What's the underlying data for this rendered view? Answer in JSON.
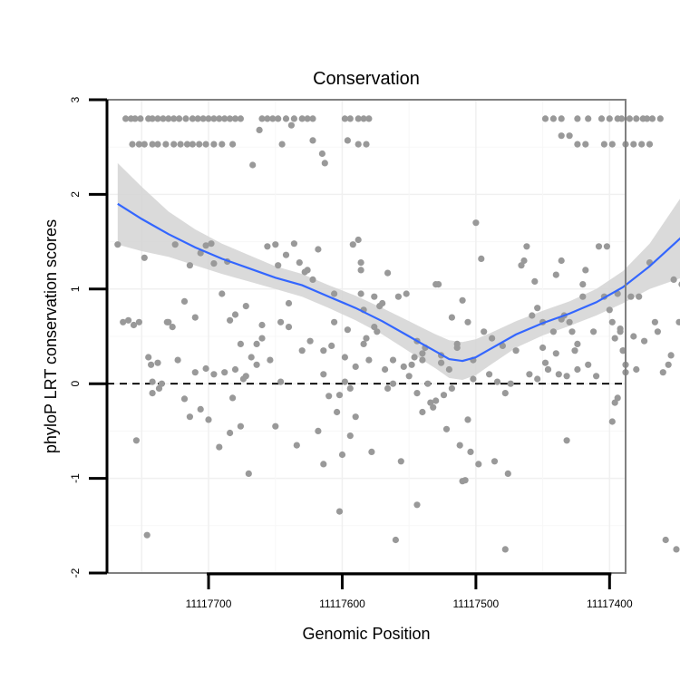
{
  "chart_data": {
    "type": "scatter",
    "title": "Conservation",
    "xlabel": "Genomic Position",
    "ylabel": "phyloP LRT conservation scores",
    "xlim": [
      11117776,
      11117388
    ],
    "ylim": [
      -2,
      3
    ],
    "x_reversed": true,
    "x_ticks": [
      11117700,
      11117600,
      11117500,
      11117400
    ],
    "x_tick_labels": [
      "11117700",
      "11117600",
      "11117500",
      "11117400"
    ],
    "y_ticks": [
      -2,
      -1,
      0,
      1,
      2,
      3
    ],
    "y_tick_labels": [
      "-2",
      "-1",
      "0",
      "1",
      "2",
      "3"
    ],
    "grid": true,
    "reference_line": {
      "y": 0,
      "style": "dashed",
      "color": "#000000"
    },
    "point_color": "#999999",
    "smooth_color": "#3366ff",
    "band_color": "#d4d4d4",
    "points": [
      [
        11117762,
        2.8
      ],
      [
        11117758,
        2.8
      ],
      [
        11117755,
        2.8
      ],
      [
        11117751,
        2.8
      ],
      [
        11117745,
        2.8
      ],
      [
        11117742,
        2.8
      ],
      [
        11117738,
        2.8
      ],
      [
        11117734,
        2.8
      ],
      [
        11117730,
        2.8
      ],
      [
        11117726,
        2.8
      ],
      [
        11117722,
        2.8
      ],
      [
        11117717,
        2.8
      ],
      [
        11117712,
        2.8
      ],
      [
        11117708,
        2.8
      ],
      [
        11117704,
        2.8
      ],
      [
        11117700,
        2.8
      ],
      [
        11117696,
        2.8
      ],
      [
        11117692,
        2.8
      ],
      [
        11117688,
        2.8
      ],
      [
        11117684,
        2.8
      ],
      [
        11117680,
        2.8
      ],
      [
        11117676,
        2.8
      ],
      [
        11117757,
        2.53
      ],
      [
        11117752,
        2.53
      ],
      [
        11117748,
        2.53
      ],
      [
        11117742,
        2.53
      ],
      [
        11117738,
        2.53
      ],
      [
        11117732,
        2.53
      ],
      [
        11117726,
        2.53
      ],
      [
        11117721,
        2.53
      ],
      [
        11117716,
        2.53
      ],
      [
        11117712,
        2.53
      ],
      [
        11117707,
        2.53
      ],
      [
        11117702,
        2.53
      ],
      [
        11117696,
        2.53
      ],
      [
        11117690,
        2.53
      ],
      [
        11117682,
        2.53
      ],
      [
        11117660,
        2.8
      ],
      [
        11117656,
        2.8
      ],
      [
        11117652,
        2.8
      ],
      [
        11117648,
        2.8
      ],
      [
        11117642,
        2.8
      ],
      [
        11117636,
        2.8
      ],
      [
        11117630,
        2.8
      ],
      [
        11117626,
        2.8
      ],
      [
        11117622,
        2.8
      ],
      [
        11117598,
        2.8
      ],
      [
        11117594,
        2.8
      ],
      [
        11117588,
        2.8
      ],
      [
        11117584,
        2.8
      ],
      [
        11117580,
        2.8
      ],
      [
        11117662,
        2.68
      ],
      [
        11117645,
        2.53
      ],
      [
        11117638,
        2.73
      ],
      [
        11117622,
        2.57
      ],
      [
        11117615,
        2.43
      ],
      [
        11117613,
        2.33
      ],
      [
        11117596,
        2.57
      ],
      [
        11117588,
        2.53
      ],
      [
        11117582,
        2.53
      ],
      [
        11117667,
        2.31
      ],
      [
        11117448,
        2.8
      ],
      [
        11117442,
        2.8
      ],
      [
        11117436,
        2.8
      ],
      [
        11117424,
        2.8
      ],
      [
        11117416,
        2.8
      ],
      [
        11117406,
        2.8
      ],
      [
        11117400,
        2.8
      ],
      [
        11117394,
        2.8
      ],
      [
        11117391,
        2.8
      ],
      [
        11117385,
        2.8
      ],
      [
        11117380,
        2.8
      ],
      [
        11117375,
        2.8
      ],
      [
        11117372,
        2.8
      ],
      [
        11117368,
        2.8
      ],
      [
        11117362,
        2.8
      ],
      [
        11117436,
        2.62
      ],
      [
        11117430,
        2.62
      ],
      [
        11117424,
        2.53
      ],
      [
        11117418,
        2.53
      ],
      [
        11117404,
        2.53
      ],
      [
        11117398,
        2.53
      ],
      [
        11117388,
        2.53
      ],
      [
        11117382,
        2.53
      ],
      [
        11117376,
        2.53
      ],
      [
        11117370,
        2.53
      ],
      [
        11117768,
        1.47
      ],
      [
        11117764,
        0.65
      ],
      [
        11117756,
        0.62
      ],
      [
        11117752,
        0.65
      ],
      [
        11117748,
        1.33
      ],
      [
        11117745,
        0.28
      ],
      [
        11117743,
        0.2
      ],
      [
        11117742,
        -0.1
      ],
      [
        11117738,
        0.22
      ],
      [
        11117735,
        0.0
      ],
      [
        11117731,
        0.65
      ],
      [
        11117727,
        0.6
      ],
      [
        11117723,
        0.25
      ],
      [
        11117718,
        0.87
      ],
      [
        11117714,
        1.25
      ],
      [
        11117710,
        0.7
      ],
      [
        11117706,
        1.38
      ],
      [
        11117702,
        1.46
      ],
      [
        11117698,
        1.48
      ],
      [
        11117696,
        1.27
      ],
      [
        11117690,
        0.95
      ],
      [
        11117686,
        1.29
      ],
      [
        11117684,
        0.67
      ],
      [
        11117680,
        0.73
      ],
      [
        11117676,
        0.42
      ],
      [
        11117760,
        0.67
      ],
      [
        11117754,
        -0.6
      ],
      [
        11117746,
        -1.6
      ],
      [
        11117742,
        0.02
      ],
      [
        11117737,
        -0.05
      ],
      [
        11117730,
        0.65
      ],
      [
        11117725,
        1.47
      ],
      [
        11117718,
        -0.16
      ],
      [
        11117714,
        -0.35
      ],
      [
        11117710,
        0.12
      ],
      [
        11117706,
        -0.27
      ],
      [
        11117702,
        0.16
      ],
      [
        11117700,
        -0.38
      ],
      [
        11117696,
        0.1
      ],
      [
        11117692,
        -0.67
      ],
      [
        11117688,
        0.12
      ],
      [
        11117684,
        -0.52
      ],
      [
        11117682,
        -0.15
      ],
      [
        11117680,
        0.15
      ],
      [
        11117676,
        -0.45
      ],
      [
        11117674,
        0.05
      ],
      [
        11117672,
        0.08
      ],
      [
        11117670,
        -0.95
      ],
      [
        11117668,
        0.28
      ],
      [
        11117664,
        0.2
      ],
      [
        11117672,
        0.82
      ],
      [
        11117664,
        0.42
      ],
      [
        11117660,
        0.48
      ],
      [
        11117656,
        1.45
      ],
      [
        11117650,
        1.47
      ],
      [
        11117648,
        1.25
      ],
      [
        11117646,
        0.02
      ],
      [
        11117642,
        1.36
      ],
      [
        11117640,
        0.6
      ],
      [
        11117636,
        1.48
      ],
      [
        11117632,
        1.28
      ],
      [
        11117628,
        1.18
      ],
      [
        11117626,
        1.2
      ],
      [
        11117622,
        1.1
      ],
      [
        11117618,
        1.42
      ],
      [
        11117614,
        0.35
      ],
      [
        11117610,
        -0.13
      ],
      [
        11117606,
        0.65
      ],
      [
        11117602,
        -0.12
      ],
      [
        11117598,
        0.02
      ],
      [
        11117594,
        -0.05
      ],
      [
        11117590,
        -0.35
      ],
      [
        11117586,
        1.28
      ],
      [
        11117584,
        0.42
      ],
      [
        11117660,
        0.62
      ],
      [
        11117654,
        0.25
      ],
      [
        11117650,
        -0.45
      ],
      [
        11117646,
        0.65
      ],
      [
        11117640,
        0.85
      ],
      [
        11117634,
        -0.65
      ],
      [
        11117630,
        0.35
      ],
      [
        11117624,
        0.45
      ],
      [
        11117618,
        -0.5
      ],
      [
        11117614,
        0.1
      ],
      [
        11117608,
        0.4
      ],
      [
        11117604,
        -0.3
      ],
      [
        11117600,
        -0.75
      ],
      [
        11117596,
        0.57
      ],
      [
        11117592,
        1.47
      ],
      [
        11117588,
        1.52
      ],
      [
        11117586,
        0.95
      ],
      [
        11117584,
        0.78
      ],
      [
        11117580,
        0.25
      ],
      [
        11117576,
        0.92
      ],
      [
        11117572,
        0.82
      ],
      [
        11117568,
        0.15
      ],
      [
        11117566,
        -0.05
      ],
      [
        11117562,
        0.0
      ],
      [
        11117614,
        -0.85
      ],
      [
        11117606,
        0.95
      ],
      [
        11117602,
        -1.35
      ],
      [
        11117598,
        0.28
      ],
      [
        11117594,
        -0.55
      ],
      [
        11117590,
        0.18
      ],
      [
        11117586,
        1.2
      ],
      [
        11117582,
        0.48
      ],
      [
        11117578,
        -0.72
      ],
      [
        11117576,
        0.6
      ],
      [
        11117574,
        0.55
      ],
      [
        11117570,
        0.85
      ],
      [
        11117566,
        1.17
      ],
      [
        11117562,
        0.25
      ],
      [
        11117558,
        0.92
      ],
      [
        11117554,
        0.18
      ],
      [
        11117550,
        0.08
      ],
      [
        11117546,
        0.28
      ],
      [
        11117544,
        -0.1
      ],
      [
        11117540,
        0.25
      ],
      [
        11117560,
        -1.65
      ],
      [
        11117556,
        -0.82
      ],
      [
        11117552,
        0.95
      ],
      [
        11117548,
        0.2
      ],
      [
        11117544,
        0.45
      ],
      [
        11117540,
        0.32
      ],
      [
        11117538,
        0.38
      ],
      [
        11117536,
        0.0
      ],
      [
        11117532,
        -0.25
      ],
      [
        11117530,
        -0.18
      ],
      [
        11117528,
        1.05
      ],
      [
        11117526,
        0.3
      ],
      [
        11117524,
        -0.12
      ],
      [
        11117520,
        0.15
      ],
      [
        11117518,
        -0.05
      ],
      [
        11117514,
        0.42
      ],
      [
        11117512,
        -0.65
      ],
      [
        11117510,
        0.88
      ],
      [
        11117508,
        -1.02
      ],
      [
        11117506,
        -0.38
      ],
      [
        11117504,
        -0.72
      ],
      [
        11117502,
        0.05
      ],
      [
        11117500,
        1.7
      ],
      [
        11117544,
        -1.28
      ],
      [
        11117540,
        -0.3
      ],
      [
        11117534,
        -0.2
      ],
      [
        11117530,
        1.05
      ],
      [
        11117526,
        0.22
      ],
      [
        11117522,
        -0.48
      ],
      [
        11117518,
        0.7
      ],
      [
        11117514,
        0.38
      ],
      [
        11117510,
        -1.03
      ],
      [
        11117506,
        0.65
      ],
      [
        11117502,
        0.25
      ],
      [
        11117498,
        -0.85
      ],
      [
        11117496,
        1.32
      ],
      [
        11117494,
        0.55
      ],
      [
        11117490,
        0.1
      ],
      [
        11117488,
        0.48
      ],
      [
        11117486,
        -0.82
      ],
      [
        11117484,
        0.02
      ],
      [
        11117480,
        0.4
      ],
      [
        11117478,
        -0.1
      ],
      [
        11117476,
        -0.95
      ],
      [
        11117478,
        -1.75
      ],
      [
        11117474,
        0.0
      ],
      [
        11117470,
        0.35
      ],
      [
        11117466,
        1.25
      ],
      [
        11117462,
        1.45
      ],
      [
        11117458,
        0.72
      ],
      [
        11117456,
        1.08
      ],
      [
        11117454,
        0.8
      ],
      [
        11117450,
        0.38
      ],
      [
        11117448,
        0.22
      ],
      [
        11117446,
        0.15
      ],
      [
        11117442,
        0.55
      ],
      [
        11117440,
        0.32
      ],
      [
        11117438,
        0.1
      ],
      [
        11117436,
        0.68
      ],
      [
        11117434,
        0.72
      ],
      [
        11117432,
        0.08
      ],
      [
        11117430,
        0.65
      ],
      [
        11117426,
        0.35
      ],
      [
        11117424,
        0.15
      ],
      [
        11117420,
        0.92
      ],
      [
        11117418,
        1.2
      ],
      [
        11117464,
        1.3
      ],
      [
        11117460,
        0.1
      ],
      [
        11117454,
        0.05
      ],
      [
        11117450,
        0.65
      ],
      [
        11117446,
        0.15
      ],
      [
        11117440,
        1.15
      ],
      [
        11117436,
        1.3
      ],
      [
        11117432,
        -0.6
      ],
      [
        11117428,
        0.55
      ],
      [
        11117424,
        0.42
      ],
      [
        11117420,
        1.05
      ],
      [
        11117416,
        0.2
      ],
      [
        11117412,
        0.55
      ],
      [
        11117410,
        0.08
      ],
      [
        11117408,
        1.45
      ],
      [
        11117404,
        0.92
      ],
      [
        11117400,
        0.78
      ],
      [
        11117398,
        0.65
      ],
      [
        11117396,
        0.48
      ],
      [
        11117394,
        -0.15
      ],
      [
        11117392,
        0.58
      ],
      [
        11117390,
        0.35
      ],
      [
        11117388,
        0.2
      ],
      [
        11117402,
        1.45
      ],
      [
        11117398,
        -0.4
      ],
      [
        11117396,
        -0.2
      ],
      [
        11117394,
        0.95
      ],
      [
        11117392,
        0.55
      ],
      [
        11117390,
        0.35
      ],
      [
        11117388,
        0.12
      ],
      [
        11117384,
        0.92
      ],
      [
        11117382,
        0.5
      ],
      [
        11117380,
        0.15
      ],
      [
        11117378,
        0.92
      ],
      [
        11117374,
        0.45
      ],
      [
        11117370,
        1.28
      ],
      [
        11117366,
        0.65
      ],
      [
        11117364,
        0.55
      ],
      [
        11117360,
        0.12
      ],
      [
        11117358,
        -1.65
      ],
      [
        11117356,
        0.2
      ],
      [
        11117354,
        0.3
      ],
      [
        11117352,
        1.1
      ],
      [
        11117350,
        -1.75
      ],
      [
        11117348,
        0.65
      ],
      [
        11117346,
        1.05
      ]
    ],
    "smooth_line": [
      [
        11117768,
        1.9
      ],
      [
        11117750,
        1.74
      ],
      [
        11117730,
        1.58
      ],
      [
        11117710,
        1.44
      ],
      [
        11117690,
        1.32
      ],
      [
        11117670,
        1.22
      ],
      [
        11117650,
        1.12
      ],
      [
        11117630,
        1.04
      ],
      [
        11117610,
        0.92
      ],
      [
        11117590,
        0.8
      ],
      [
        11117570,
        0.66
      ],
      [
        11117550,
        0.5
      ],
      [
        11117540,
        0.42
      ],
      [
        11117530,
        0.34
      ],
      [
        11117520,
        0.26
      ],
      [
        11117510,
        0.24
      ],
      [
        11117500,
        0.28
      ],
      [
        11117490,
        0.36
      ],
      [
        11117470,
        0.52
      ],
      [
        11117450,
        0.64
      ],
      [
        11117430,
        0.74
      ],
      [
        11117410,
        0.86
      ],
      [
        11117390,
        1.02
      ],
      [
        11117370,
        1.24
      ],
      [
        11117346,
        1.55
      ]
    ],
    "smooth_band_upper": [
      [
        11117768,
        2.33
      ],
      [
        11117750,
        2.08
      ],
      [
        11117730,
        1.82
      ],
      [
        11117710,
        1.63
      ],
      [
        11117690,
        1.48
      ],
      [
        11117670,
        1.36
      ],
      [
        11117650,
        1.24
      ],
      [
        11117630,
        1.16
      ],
      [
        11117610,
        1.04
      ],
      [
        11117590,
        0.93
      ],
      [
        11117570,
        0.8
      ],
      [
        11117550,
        0.66
      ],
      [
        11117540,
        0.59
      ],
      [
        11117530,
        0.52
      ],
      [
        11117520,
        0.46
      ],
      [
        11117510,
        0.44
      ],
      [
        11117500,
        0.47
      ],
      [
        11117490,
        0.53
      ],
      [
        11117470,
        0.66
      ],
      [
        11117450,
        0.77
      ],
      [
        11117430,
        0.87
      ],
      [
        11117410,
        1.0
      ],
      [
        11117390,
        1.19
      ],
      [
        11117370,
        1.48
      ],
      [
        11117346,
        1.98
      ]
    ],
    "smooth_band_lower": [
      [
        11117768,
        1.47
      ],
      [
        11117750,
        1.4
      ],
      [
        11117730,
        1.34
      ],
      [
        11117710,
        1.25
      ],
      [
        11117690,
        1.16
      ],
      [
        11117670,
        1.08
      ],
      [
        11117650,
        1.0
      ],
      [
        11117630,
        0.92
      ],
      [
        11117610,
        0.8
      ],
      [
        11117590,
        0.67
      ],
      [
        11117570,
        0.52
      ],
      [
        11117550,
        0.34
      ],
      [
        11117540,
        0.25
      ],
      [
        11117530,
        0.16
      ],
      [
        11117520,
        0.06
      ],
      [
        11117510,
        0.04
      ],
      [
        11117500,
        0.09
      ],
      [
        11117490,
        0.19
      ],
      [
        11117470,
        0.38
      ],
      [
        11117450,
        0.51
      ],
      [
        11117430,
        0.61
      ],
      [
        11117410,
        0.72
      ],
      [
        11117390,
        0.85
      ],
      [
        11117370,
        1.0
      ],
      [
        11117346,
        1.12
      ]
    ]
  }
}
